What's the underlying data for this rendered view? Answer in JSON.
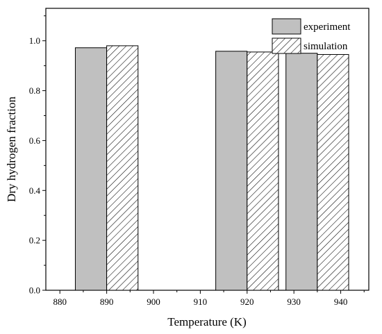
{
  "chart_data": {
    "type": "bar",
    "xlabel": "Temperature (K)",
    "ylabel": "Dry hydrogen fraction",
    "xlim": [
      877,
      946
    ],
    "ylim": [
      0,
      1.13
    ],
    "xticks": [
      "880",
      "890",
      "900",
      "910",
      "920",
      "930",
      "940"
    ],
    "yticks": [
      "0.0",
      "0.2",
      "0.4",
      "0.6",
      "0.8",
      "1.0"
    ],
    "x": [
      890,
      920,
      935
    ],
    "bar_width_x": 6.7,
    "grid": false,
    "legend_position": "top-right",
    "series": [
      {
        "name": "experiment",
        "values": [
          0.972,
          0.958,
          0.95
        ],
        "style": "solid-gray"
      },
      {
        "name": "simulation",
        "values": [
          0.98,
          0.955,
          0.945
        ],
        "style": "hatched"
      }
    ]
  },
  "colors": {
    "experiment_fill": "#c0c0c0",
    "hatch": "#000000",
    "axis": "#000000"
  }
}
